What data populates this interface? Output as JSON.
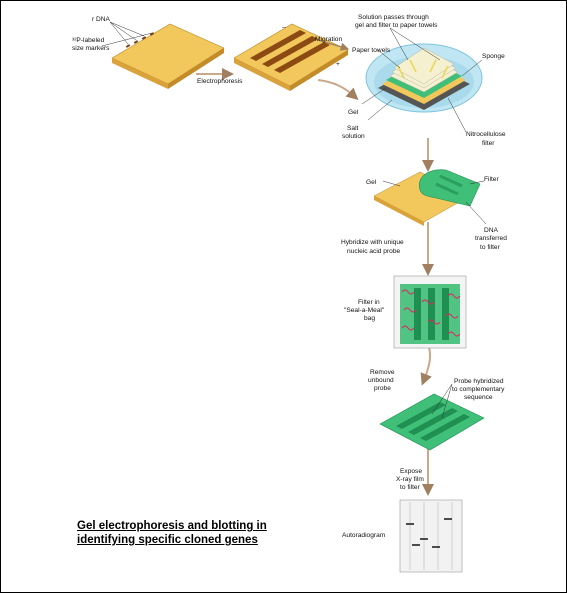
{
  "title_lines": [
    "Gel electrophoresis and blotting in",
    "identifying specific cloned genes"
  ],
  "labels": {
    "dna": "r DNA",
    "size_markers_1": "³²P-labeled",
    "size_markers_2": "size markers",
    "electrophoresis": "Electrophoresis",
    "minus": "–",
    "plus": "+",
    "migration": "Migration",
    "solution_1": "Solution passes through",
    "solution_2": "gel and filter to paper towels",
    "paper_towels": "Paper towels",
    "sponge": "Sponge",
    "gel_blot": "Gel",
    "salt_1": "Salt",
    "salt_2": "solution",
    "nitro_1": "Nitrocellulose",
    "nitro_2": "filter",
    "gel_transfer": "Gel",
    "filter": "Filter",
    "dna_t_1": "DNA",
    "dna_t_2": "transferred",
    "dna_t_3": "to filter",
    "hybridize_1": "Hybridize with unique",
    "hybridize_2": "nucleic acid probe",
    "filter_in_1": "Filter in",
    "filter_in_2": "\"Seal-a-Meal\"",
    "filter_in_3": "bag",
    "remove_1": "Remove",
    "remove_2": "unbound",
    "remove_3": "probe",
    "probe_1": "Probe hybridized",
    "probe_2": "to complementary",
    "probe_3": "sequence",
    "expose_1": "Expose",
    "expose_2": "X-ray film",
    "expose_3": "to filter",
    "autoradiogram": "Autoradiogram"
  },
  "colors": {
    "gel": "#f2c75c",
    "gel_side": "#d9a23a",
    "band": "#8a4a12",
    "filter": "#3fbf78",
    "filter_dark": "#1f8f52",
    "probe": "#e0245e",
    "tray": "#bfe6f2",
    "arrow": "#c9a98a"
  }
}
